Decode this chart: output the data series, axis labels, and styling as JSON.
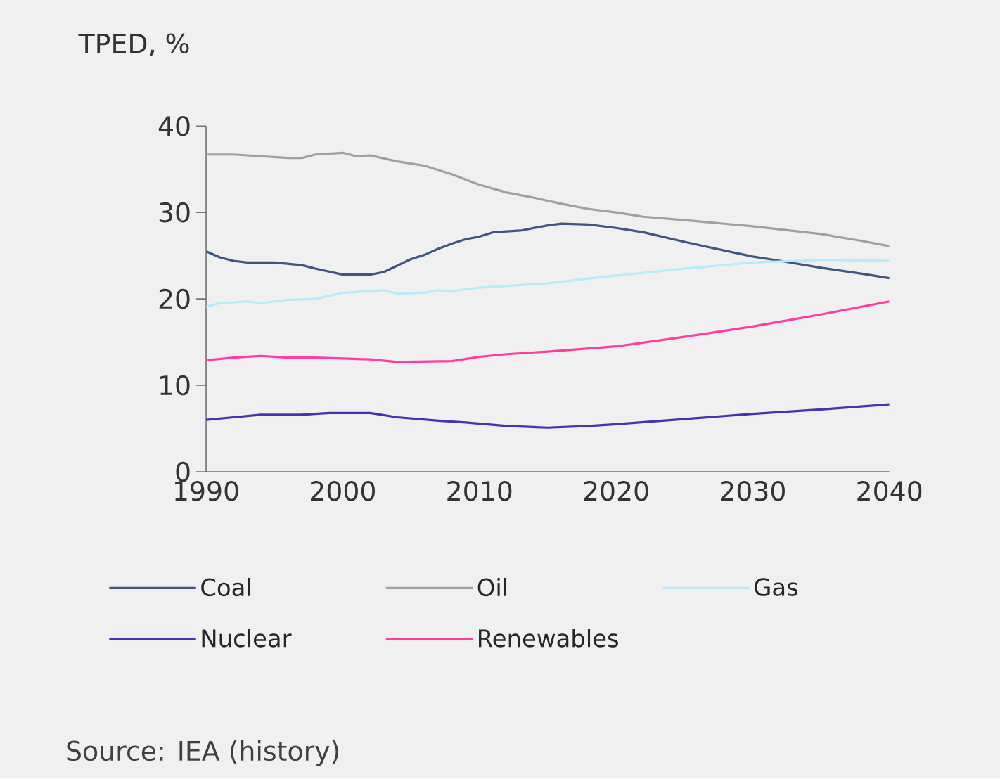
{
  "chart_data": {
    "type": "line",
    "ylabel": "TPED, %",
    "annotations": [
      "Source: IEA (history)"
    ],
    "xlim": [
      1990,
      2040
    ],
    "ylim": [
      0,
      40
    ],
    "xticks": [
      1990,
      2000,
      2010,
      2020,
      2030,
      2040
    ],
    "yticks": [
      0,
      10,
      20,
      30,
      40
    ],
    "grid": false,
    "legend": "bottom",
    "marker": "none",
    "line_style": "solid",
    "series": [
      {
        "name": "Coal",
        "color": "#3e5680",
        "x": [
          1990,
          1991,
          1992,
          1993,
          1995,
          1997,
          1998,
          2000,
          2002,
          2003,
          2005,
          2006,
          2007,
          2008,
          2009,
          2010,
          2011,
          2013,
          2015,
          2016,
          2018,
          2020,
          2022,
          2025,
          2027,
          2030,
          2032,
          2035,
          2038,
          2040
        ],
        "values": [
          25.5,
          24.8,
          24.4,
          24.2,
          24.2,
          23.9,
          23.5,
          22.8,
          22.8,
          23.1,
          24.6,
          25.1,
          25.8,
          26.4,
          26.9,
          27.2,
          27.7,
          27.9,
          28.5,
          28.7,
          28.6,
          28.2,
          27.7,
          26.6,
          25.9,
          24.9,
          24.4,
          23.6,
          22.9,
          22.4
        ]
      },
      {
        "name": "Oil",
        "color": "#a0a0a0",
        "x": [
          1990,
          1992,
          1994,
          1996,
          1997,
          1998,
          2000,
          2001,
          2002,
          2004,
          2006,
          2008,
          2010,
          2012,
          2014,
          2016,
          2018,
          2020,
          2022,
          2025,
          2030,
          2035,
          2038,
          2040
        ],
        "values": [
          36.7,
          36.7,
          36.5,
          36.3,
          36.3,
          36.7,
          36.9,
          36.5,
          36.6,
          35.9,
          35.4,
          34.4,
          33.2,
          32.3,
          31.7,
          31.0,
          30.4,
          30.0,
          29.5,
          29.1,
          28.4,
          27.5,
          26.7,
          26.1
        ]
      },
      {
        "name": "Gas",
        "color": "#b3ecfa",
        "x": [
          1990,
          1991,
          1993,
          1994,
          1996,
          1998,
          2000,
          2003,
          2004,
          2006,
          2007,
          2008,
          2010,
          2015,
          2020,
          2025,
          2030,
          2035,
          2040
        ],
        "values": [
          19.1,
          19.5,
          19.7,
          19.5,
          19.9,
          20.0,
          20.7,
          21.0,
          20.6,
          20.7,
          21.0,
          20.9,
          21.3,
          21.8,
          22.7,
          23.5,
          24.2,
          24.5,
          24.4
        ]
      },
      {
        "name": "Nuclear",
        "color": "#4b30b0",
        "x": [
          1990,
          1992,
          1994,
          1997,
          1999,
          2002,
          2004,
          2007,
          2009,
          2012,
          2015,
          2018,
          2020,
          2025,
          2030,
          2035,
          2040
        ],
        "values": [
          6.0,
          6.3,
          6.6,
          6.6,
          6.8,
          6.8,
          6.3,
          5.9,
          5.7,
          5.3,
          5.1,
          5.3,
          5.5,
          6.1,
          6.7,
          7.2,
          7.8
        ]
      },
      {
        "name": "Renewables",
        "color": "#ff3da0",
        "x": [
          1990,
          1992,
          1994,
          1996,
          1998,
          2000,
          2002,
          2004,
          2008,
          2010,
          2012,
          2015,
          2020,
          2025,
          2030,
          2035,
          2040
        ],
        "values": [
          12.9,
          13.2,
          13.4,
          13.2,
          13.2,
          13.1,
          13.0,
          12.7,
          12.8,
          13.3,
          13.6,
          13.9,
          14.5,
          15.6,
          16.8,
          18.2,
          19.7
        ]
      }
    ]
  }
}
